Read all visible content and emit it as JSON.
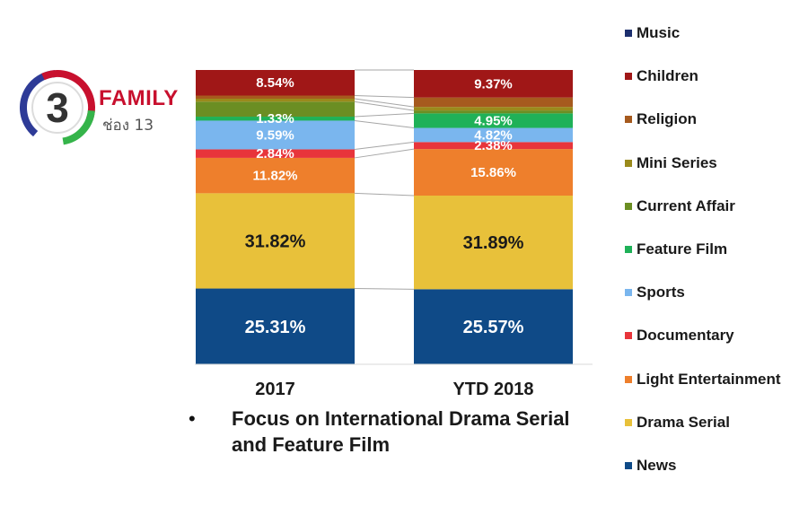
{
  "logo": {
    "brand": "FAMILY",
    "sub": "ช่อง 13",
    "numeral": "3"
  },
  "bullet": {
    "marker": "•",
    "text": "Focus on International Drama Serial and Feature Film"
  },
  "chart_data": {
    "type": "bar",
    "stacked": true,
    "percent": true,
    "categories": [
      "2017",
      "YTD 2018"
    ],
    "series": [
      {
        "name": "News",
        "color": "#0f4a87",
        "values": [
          25.31,
          25.57
        ],
        "labels": [
          "25.31%",
          "25.57%"
        ]
      },
      {
        "name": "Drama Serial",
        "color": "#e8c13a",
        "values": [
          31.82,
          31.89
        ],
        "labels": [
          "31.82%",
          "31.89%"
        ]
      },
      {
        "name": "Light Entertainment",
        "color": "#ee7f2c",
        "values": [
          11.82,
          15.86
        ],
        "labels": [
          "11.82%",
          "15.86%"
        ]
      },
      {
        "name": "Documentary",
        "color": "#e8353b",
        "values": [
          2.84,
          2.38
        ],
        "labels": [
          "2.84%",
          "2.38%"
        ]
      },
      {
        "name": "Sports",
        "color": "#7ab6ee",
        "values": [
          9.59,
          4.82
        ],
        "labels": [
          "9.59%",
          "4.82%"
        ]
      },
      {
        "name": "Feature Film",
        "color": "#1fb158",
        "values": [
          1.33,
          4.95
        ],
        "labels": [
          "1.33%",
          "4.95%"
        ]
      },
      {
        "name": "Current Affair",
        "color": "#6b8e23",
        "values": [
          5.0,
          1.0
        ],
        "labels": [
          "",
          ""
        ]
      },
      {
        "name": "Mini Series",
        "color": "#9a8a1c",
        "values": [
          1.0,
          1.2
        ],
        "labels": [
          "",
          ""
        ]
      },
      {
        "name": "Religion",
        "color": "#a65a1e",
        "values": [
          1.05,
          3.21
        ],
        "labels": [
          "",
          ""
        ]
      },
      {
        "name": "Children",
        "color": "#a01717",
        "values": [
          8.54,
          9.37
        ],
        "labels": [
          "8.54%",
          "9.37%"
        ]
      },
      {
        "name": "Music",
        "color": "#1c2f6e",
        "values": [
          0,
          0
        ],
        "labels": [
          "",
          ""
        ]
      }
    ],
    "legend_order": [
      "Music",
      "Children",
      "Religion",
      "Mini Series",
      "Current Affair",
      "Feature Film",
      "Sports",
      "Documentary",
      "Light Entertainment",
      "Drama Serial",
      "News"
    ],
    "ylim": [
      0,
      100
    ],
    "legend_position": "right",
    "grid": false
  }
}
